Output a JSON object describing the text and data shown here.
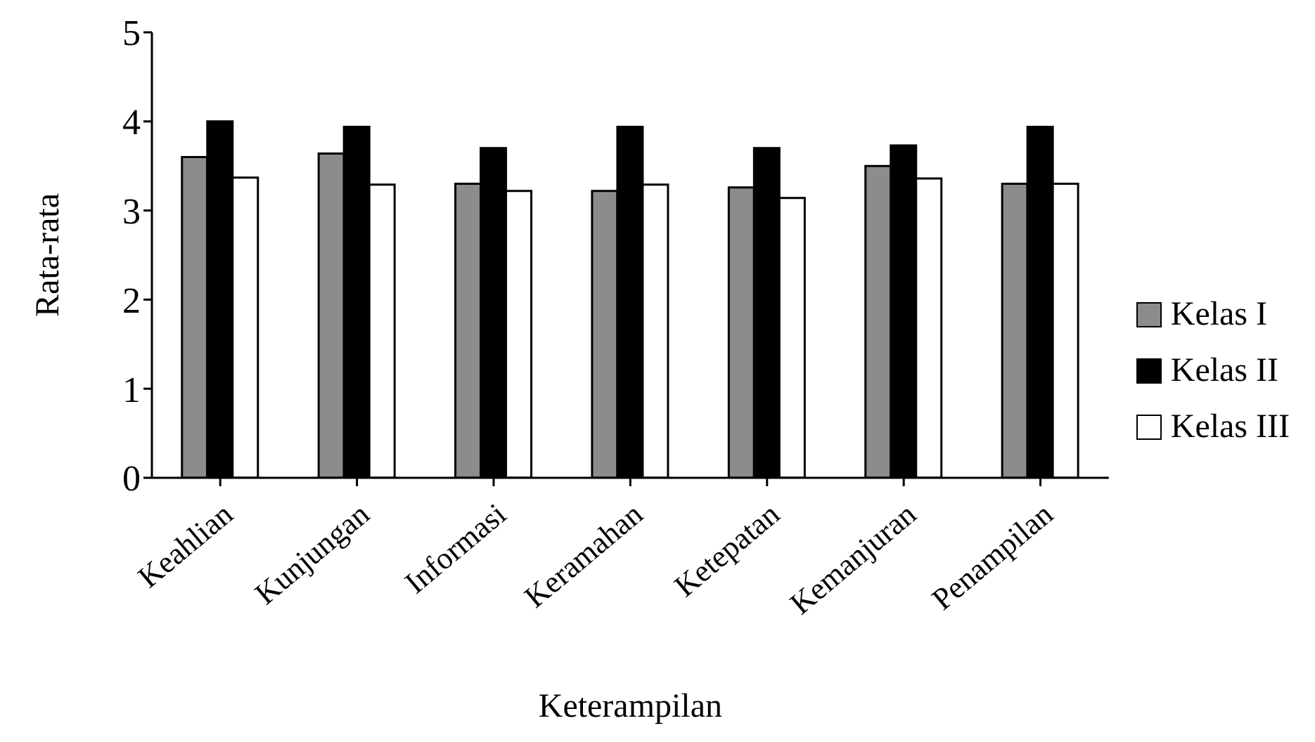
{
  "chart_data": {
    "type": "bar",
    "xlabel": "Keterampilan",
    "ylabel": "Rata-rata",
    "categories": [
      "Keahlian",
      "Kunjungan",
      "Informasi",
      "Keramahan",
      "Ketepatan",
      "Kemanjuran",
      "Penampilan"
    ],
    "series": [
      {
        "name": "Kelas I",
        "color": "#8c8c8c",
        "values": [
          3.6,
          3.64,
          3.3,
          3.22,
          3.26,
          3.5,
          3.3
        ]
      },
      {
        "name": "Kelas II",
        "color": "#000000",
        "values": [
          4.0,
          3.94,
          3.7,
          3.94,
          3.7,
          3.73,
          3.94
        ]
      },
      {
        "name": "Kelas III",
        "color": "#ffffff",
        "values": [
          3.37,
          3.29,
          3.22,
          3.29,
          3.14,
          3.36,
          3.3
        ]
      }
    ],
    "ylim": [
      0,
      5
    ],
    "yticks": [
      0,
      1,
      2,
      3,
      4,
      5
    ],
    "grid": false,
    "legend": "right"
  }
}
